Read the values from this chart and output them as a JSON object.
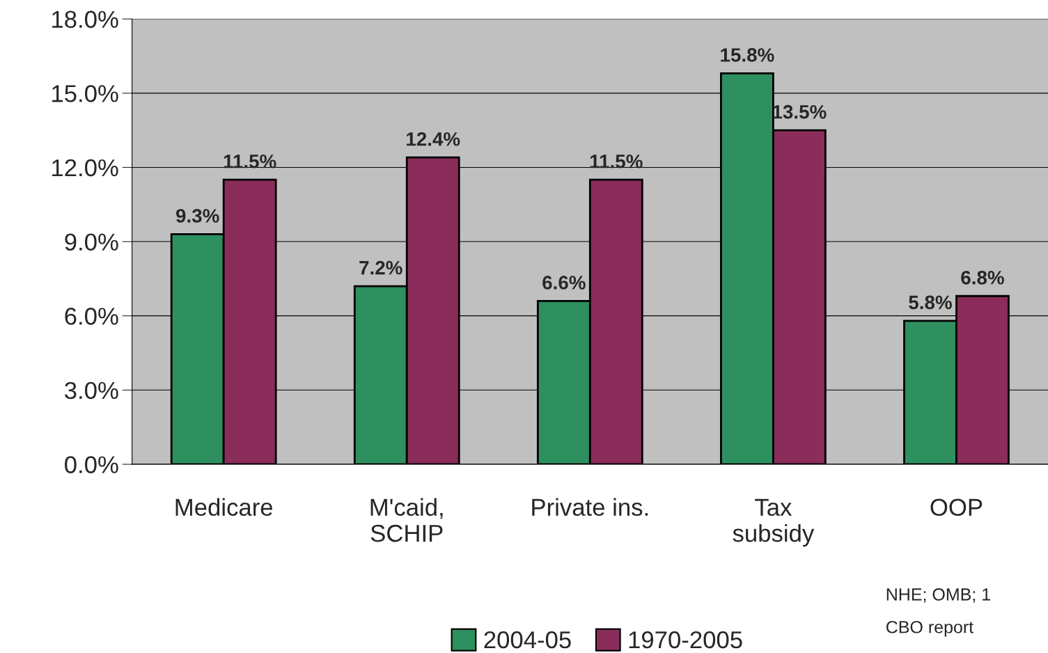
{
  "chart_data": {
    "type": "bar",
    "categories": [
      "Medicare",
      "M'caid,\nSCHIP",
      "Private ins.",
      "Tax\nsubsidy",
      "OOP"
    ],
    "series": [
      {
        "name": "2004-05",
        "color": "#2e8f5f",
        "values": [
          9.3,
          7.2,
          6.6,
          15.8,
          5.8
        ],
        "value_labels": [
          "9.3%",
          "7.2%",
          "6.6%",
          "15.8%",
          "5.8%"
        ]
      },
      {
        "name": "1970-2005",
        "color": "#8a2d5a",
        "values": [
          11.5,
          12.4,
          11.5,
          13.5,
          6.8
        ],
        "value_labels": [
          "11.5%",
          "12.4%",
          "11.5%",
          "13.5%",
          "6.8%"
        ]
      }
    ],
    "ylim": [
      0,
      18
    ],
    "yticks": [
      {
        "value": 0,
        "label": "0.0%"
      },
      {
        "value": 3,
        "label": "3.0%"
      },
      {
        "value": 6,
        "label": "6.0%"
      },
      {
        "value": 9,
        "label": "9.0%"
      },
      {
        "value": 12,
        "label": "12.0%"
      },
      {
        "value": 15,
        "label": "15.0%"
      },
      {
        "value": 18,
        "label": "18.0%"
      }
    ],
    "grid": "y",
    "legend": "bottom",
    "annotations": [
      "NHE; OMB; 1",
      "CBO report"
    ]
  }
}
